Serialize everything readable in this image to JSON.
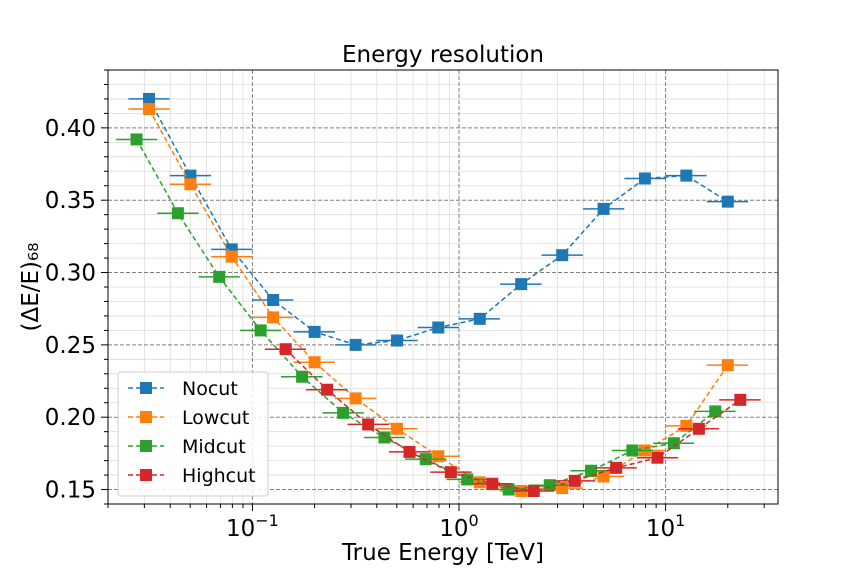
{
  "chart_data": {
    "type": "line",
    "title": "Energy resolution",
    "xlabel": "True Energy [TeV]",
    "ylabel": "(ΔE/E)₆₈",
    "xscale": "log",
    "xlim": [
      0.02,
      35
    ],
    "ylim": [
      0.14,
      0.44
    ],
    "grid": true,
    "legend_position": "lower-left",
    "x_tick_labels": [
      {
        "value": 0.1,
        "base": "10",
        "exp": "−1"
      },
      {
        "value": 1,
        "base": "10",
        "exp": "0"
      },
      {
        "value": 10,
        "base": "10",
        "exp": "1"
      }
    ],
    "y_ticks": [
      0.15,
      0.2,
      0.25,
      0.3,
      0.35,
      0.4
    ],
    "y_tick_labels": [
      "0.15",
      "0.20",
      "0.25",
      "0.30",
      "0.35",
      "0.40"
    ],
    "x": [
      0.0316,
      0.0501,
      0.0794,
      0.126,
      0.2,
      0.316,
      0.501,
      0.794,
      1.26,
      2.0,
      3.16,
      5.01,
      7.94,
      12.6,
      20.0
    ],
    "x_low": [
      0.0251,
      0.0398,
      0.0631,
      0.1,
      0.158,
      0.251,
      0.398,
      0.631,
      1.0,
      1.58,
      2.51,
      3.98,
      6.31,
      10.0,
      15.8
    ],
    "x_high": [
      0.0398,
      0.0631,
      0.1,
      0.158,
      0.251,
      0.398,
      0.631,
      1.0,
      1.58,
      2.51,
      3.98,
      6.31,
      10.0,
      15.8,
      25.1
    ],
    "series": [
      {
        "name": "Nocut",
        "color": "#1f77b4",
        "x_offset": 1.0,
        "values": [
          0.42,
          0.367,
          0.316,
          0.281,
          0.259,
          0.25,
          0.253,
          0.262,
          0.268,
          0.292,
          0.312,
          0.344,
          0.365,
          0.367,
          0.349
        ]
      },
      {
        "name": "Lowcut",
        "color": "#ff7f0e",
        "x_offset": 1.0,
        "values": [
          0.413,
          0.361,
          0.311,
          0.269,
          0.238,
          0.213,
          0.192,
          0.173,
          0.155,
          0.149,
          0.151,
          0.159,
          0.177,
          0.194,
          0.236
        ]
      },
      {
        "name": "Midcut",
        "color": "#2ca02c",
        "x_offset": 0.87,
        "values": [
          0.392,
          0.341,
          0.297,
          0.26,
          0.228,
          0.203,
          0.186,
          0.171,
          0.157,
          0.15,
          0.153,
          0.163,
          0.177,
          0.182,
          0.204
        ]
      },
      {
        "name": "Highcut",
        "color": "#d62728",
        "x_offset": 1.15,
        "values": [
          null,
          null,
          null,
          0.247,
          0.219,
          0.195,
          0.176,
          0.162,
          0.154,
          0.149,
          0.156,
          0.165,
          0.172,
          0.192,
          0.212
        ]
      }
    ]
  }
}
